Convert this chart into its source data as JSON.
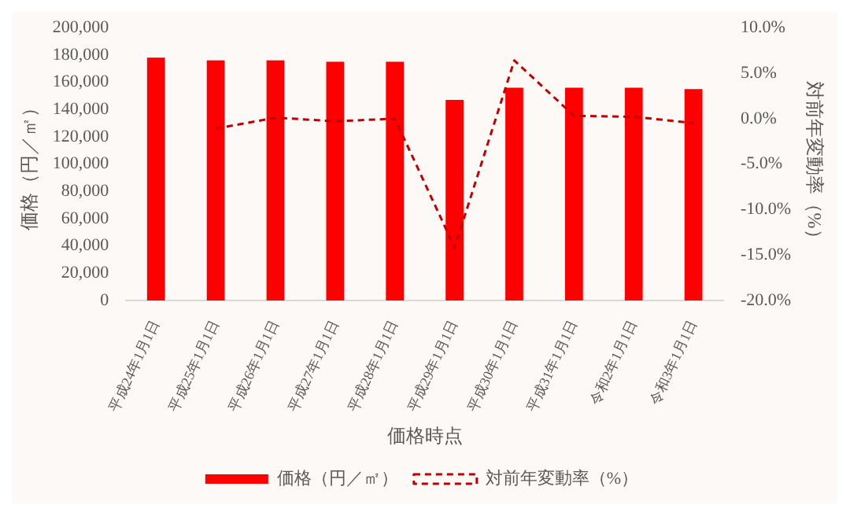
{
  "chart_data": {
    "type": "bar",
    "xlabel": "価格時点",
    "ylabel": "価格（円／㎡）",
    "y2label": "対前年変動率（%）",
    "categories": [
      "平成24年1月1日",
      "平成25年1月1日",
      "平成26年1月1日",
      "平成27年1月1日",
      "平成28年1月1日",
      "平成29年1月1日",
      "平成30年1月1日",
      "平成31年1月1日",
      "令和2年1月1日",
      "令和3年1月1日"
    ],
    "series": [
      {
        "name": "価格（円／㎡）",
        "color": "#ff0000",
        "values": [
          178000,
          176000,
          176000,
          175000,
          175000,
          147000,
          156000,
          156000,
          156000,
          155000
        ]
      },
      {
        "name": "対前年変動率（%）",
        "type": "line",
        "axis": "y2",
        "color": "#c00000",
        "line_style": "dashed",
        "marker": "none",
        "values": [
          null,
          -1.1,
          0.1,
          -0.3,
          0.0,
          -14.2,
          6.4,
          0.3,
          0.2,
          -0.5
        ]
      }
    ],
    "ylim": [
      0,
      200000
    ],
    "yticks": [
      0,
      {
        "value": 20000,
        "label": "20,000"
      },
      {
        "value": 40000,
        "label": "40,000"
      },
      {
        "value": 60000,
        "label": "60,000"
      },
      {
        "value": 80000,
        "label": "80,000"
      },
      {
        "value": 100000,
        "label": "100,000"
      },
      {
        "value": 120000,
        "label": "120,000"
      },
      {
        "value": 140000,
        "label": "140,000"
      },
      {
        "value": 160000,
        "label": "160,000"
      },
      {
        "value": 180000,
        "label": "180,000"
      },
      {
        "value": 200000,
        "label": "200,000"
      }
    ],
    "y2lim": [
      -20,
      10
    ],
    "y2ticks": [
      {
        "value": -20,
        "label": "-20.0%"
      },
      {
        "value": -15,
        "label": "-15.0%"
      },
      {
        "value": -10,
        "label": "-10.0%"
      },
      {
        "value": -5,
        "label": "-5.0%"
      },
      {
        "value": 0,
        "label": "0.0%"
      },
      {
        "value": 5,
        "label": "5.0%"
      },
      {
        "value": 10,
        "label": "10.0%"
      }
    ],
    "grid": false,
    "legend": "bottom"
  }
}
